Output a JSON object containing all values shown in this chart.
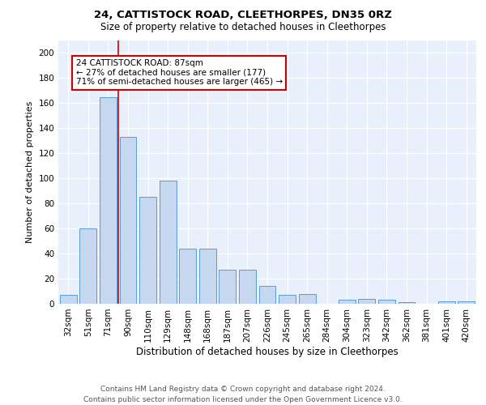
{
  "title1": "24, CATTISTOCK ROAD, CLEETHORPES, DN35 0RZ",
  "title2": "Size of property relative to detached houses in Cleethorpes",
  "xlabel": "Distribution of detached houses by size in Cleethorpes",
  "ylabel": "Number of detached properties",
  "footer1": "Contains HM Land Registry data © Crown copyright and database right 2024.",
  "footer2": "Contains public sector information licensed under the Open Government Licence v3.0.",
  "bin_labels": [
    "32sqm",
    "51sqm",
    "71sqm",
    "90sqm",
    "110sqm",
    "129sqm",
    "148sqm",
    "168sqm",
    "187sqm",
    "207sqm",
    "226sqm",
    "245sqm",
    "265sqm",
    "284sqm",
    "304sqm",
    "323sqm",
    "342sqm",
    "362sqm",
    "381sqm",
    "401sqm",
    "420sqm"
  ],
  "bar_values": [
    7,
    60,
    165,
    133,
    85,
    98,
    44,
    44,
    27,
    27,
    14,
    7,
    8,
    0,
    3,
    4,
    3,
    1,
    0,
    2,
    2
  ],
  "bar_color": "#c5d8f0",
  "bar_edge_color": "#5b9bd5",
  "red_line_x": 2.5,
  "annotation_box_text": "24 CATTISTOCK ROAD: 87sqm\n← 27% of detached houses are smaller (177)\n71% of semi-detached houses are larger (465) →",
  "ylim": [
    0,
    210
  ],
  "yticks": [
    0,
    20,
    40,
    60,
    80,
    100,
    120,
    140,
    160,
    180,
    200
  ],
  "background_color": "#e8f0fb",
  "grid_color": "#ffffff",
  "box_edge_color": "#cc0000",
  "vline_color": "#cc0000",
  "title1_fontsize": 9.5,
  "title2_fontsize": 8.5,
  "ylabel_fontsize": 8,
  "xlabel_fontsize": 8.5,
  "tick_fontsize": 7.5,
  "footer_fontsize": 6.5,
  "annot_fontsize": 7.5
}
